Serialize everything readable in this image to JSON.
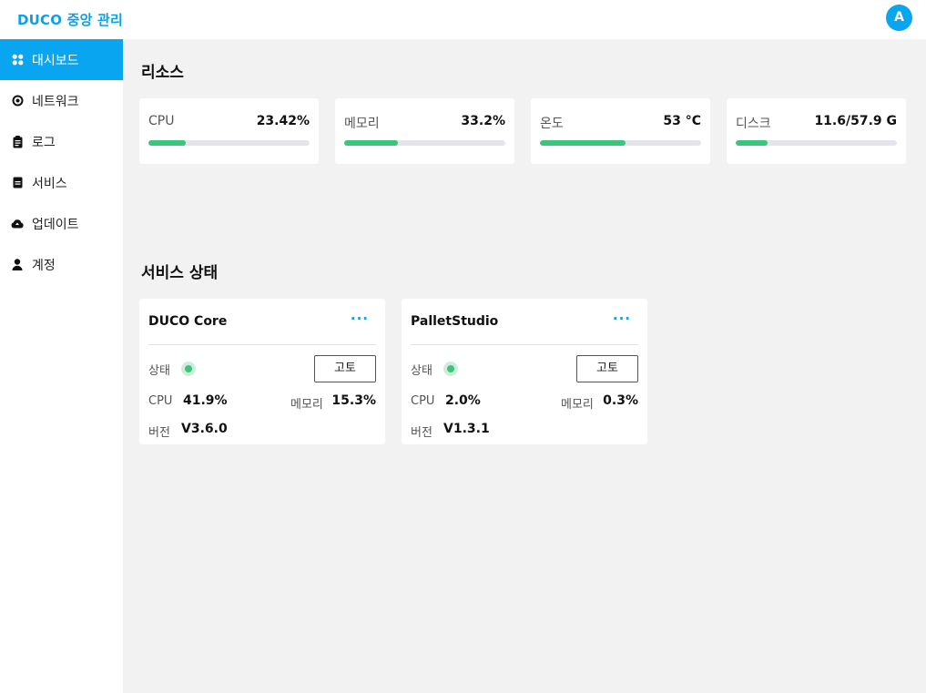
{
  "app": {
    "title": "DUCO 중앙 관리",
    "avatar_letter": "A",
    "accent_color": "#0aa5f0"
  },
  "sidebar": {
    "items": [
      {
        "label": "대시보드",
        "icon": "dashboard-icon",
        "active": true
      },
      {
        "label": "네트워크",
        "icon": "network-icon",
        "active": false
      },
      {
        "label": "로그",
        "icon": "log-icon",
        "active": false
      },
      {
        "label": "서비스",
        "icon": "service-icon",
        "active": false
      },
      {
        "label": "업데이트",
        "icon": "cloud-update-icon",
        "active": false
      },
      {
        "label": "계정",
        "icon": "user-icon",
        "active": false
      }
    ]
  },
  "resources": {
    "title": "리소스",
    "items": [
      {
        "label": "CPU",
        "value": "23.42%",
        "fill": 0.2342
      },
      {
        "label": "메모리",
        "value": "33.2%",
        "fill": 0.332
      },
      {
        "label": "온도",
        "value": "53 °C",
        "fill": 0.53
      },
      {
        "label": "디스크",
        "value": "11.6/57.9 G",
        "fill": 0.2
      }
    ],
    "bar_color": "#3cc47c"
  },
  "services": {
    "title": "서비스 상태",
    "status_label": "상태",
    "fix_label": "고토",
    "cpu_label": "CPU",
    "memory_label": "메모리",
    "version_label": "버전",
    "more_icon": "more-horizontal-icon",
    "items": [
      {
        "name": "DUCO Core",
        "cpu": "41.9%",
        "memory": "15.3%",
        "version": "V3.6.0",
        "status_color": "#3cc47c"
      },
      {
        "name": "PalletStudio",
        "cpu": "2.0%",
        "memory": "0.3%",
        "version": "V1.3.1",
        "status_color": "#3cc47c"
      }
    ]
  }
}
